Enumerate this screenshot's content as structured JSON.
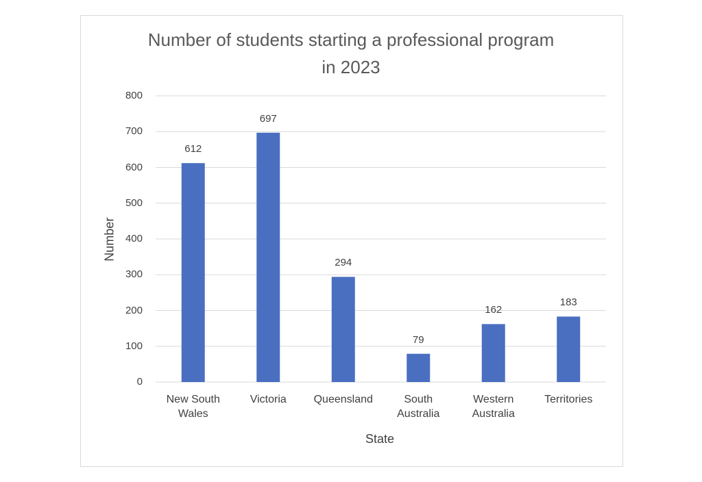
{
  "chart_data": {
    "type": "bar",
    "title": "Number of students starting a professional program in 2023",
    "x_label": "State",
    "y_label": "Number",
    "categories": [
      "New South Wales",
      "Victoria",
      "Queensland",
      "South Australia",
      "Western Australia",
      "Territories"
    ],
    "values": [
      612,
      697,
      294,
      79,
      162,
      183
    ],
    "color": "#4a6fc1",
    "ylim": [
      0,
      800
    ],
    "yticks": [
      0,
      100,
      200,
      300,
      400,
      500,
      600,
      700,
      800
    ],
    "grid": true,
    "data_labels": true
  }
}
